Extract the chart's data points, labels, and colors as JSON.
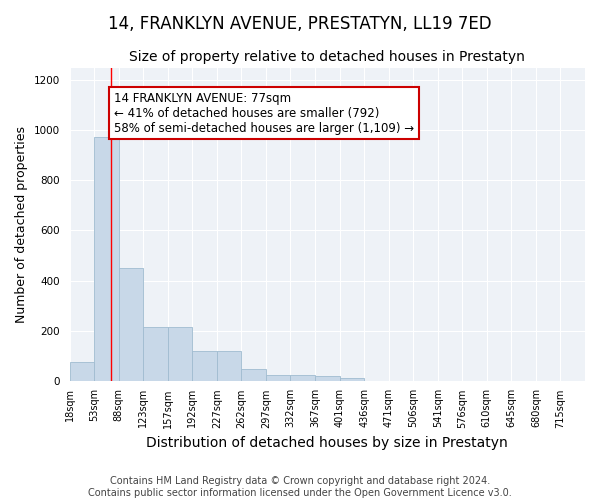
{
  "title": "14, FRANKLYN AVENUE, PRESTATYN, LL19 7ED",
  "subtitle": "Size of property relative to detached houses in Prestatyn",
  "xlabel": "Distribution of detached houses by size in Prestatyn",
  "ylabel": "Number of detached properties",
  "bar_color": "#c8d8e8",
  "bar_edge_color": "#a0bcd0",
  "background_color": "#eef2f7",
  "annotation_box_color": "#cc0000",
  "annotation_text": "14 FRANKLYN AVENUE: 77sqm\n← 41% of detached houses are smaller (792)\n58% of semi-detached houses are larger (1,109) →",
  "property_line_bin": 1,
  "categories": [
    "18sqm",
    "53sqm",
    "88sqm",
    "123sqm",
    "157sqm",
    "192sqm",
    "227sqm",
    "262sqm",
    "297sqm",
    "332sqm",
    "367sqm",
    "401sqm",
    "436sqm",
    "471sqm",
    "506sqm",
    "541sqm",
    "576sqm",
    "610sqm",
    "645sqm",
    "680sqm",
    "715sqm"
  ],
  "values": [
    75,
    975,
    450,
    215,
    215,
    120,
    120,
    45,
    22,
    22,
    17,
    10,
    0,
    0,
    0,
    0,
    0,
    0,
    0,
    0,
    0
  ],
  "ylim": [
    0,
    1250
  ],
  "yticks": [
    0,
    200,
    400,
    600,
    800,
    1000,
    1200
  ],
  "footnote": "Contains HM Land Registry data © Crown copyright and database right 2024.\nContains public sector information licensed under the Open Government Licence v3.0.",
  "title_fontsize": 12,
  "subtitle_fontsize": 10,
  "xlabel_fontsize": 10,
  "ylabel_fontsize": 9,
  "annotation_fontsize": 8.5,
  "footnote_fontsize": 7,
  "tick_fontsize": 7
}
